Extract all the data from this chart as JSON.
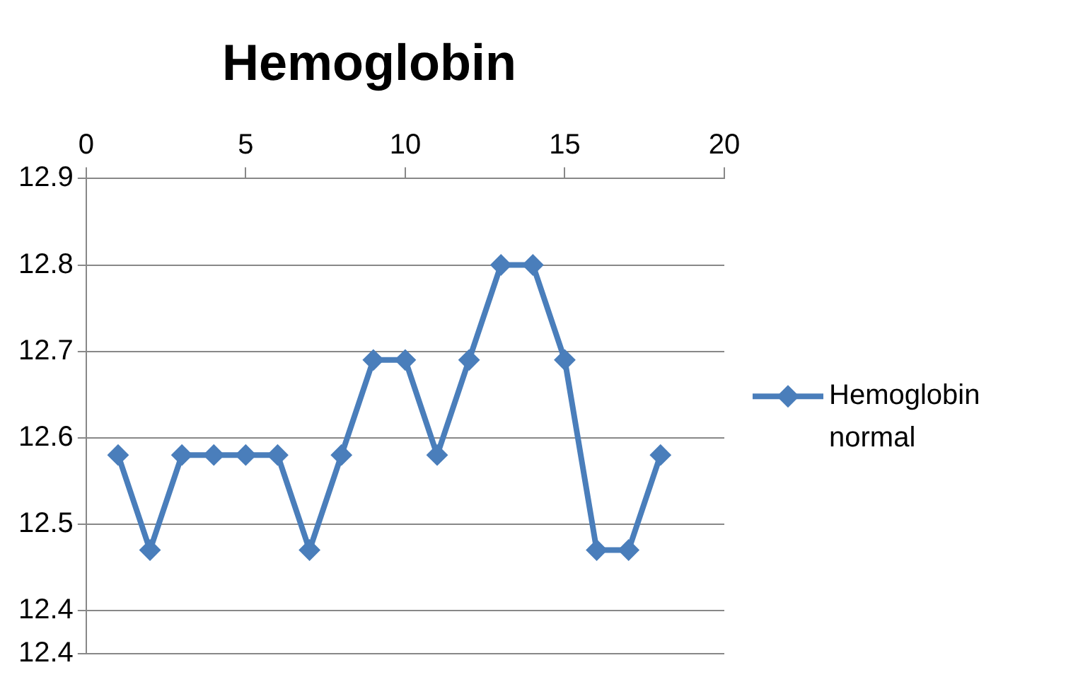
{
  "chart_data": {
    "type": "line",
    "title": "Hemoglobin",
    "x": [
      1,
      2,
      3,
      4,
      5,
      6,
      7,
      8,
      9,
      10,
      11,
      12,
      13,
      14,
      15,
      16,
      17,
      18
    ],
    "series": [
      {
        "name": "Hemoglobin normal",
        "color": "#4a7ebb",
        "values": [
          12.58,
          12.47,
          12.58,
          12.58,
          12.58,
          12.58,
          12.47,
          12.58,
          12.69,
          12.69,
          12.58,
          12.69,
          12.8,
          12.8,
          12.69,
          12.47,
          12.47,
          12.58
        ]
      }
    ],
    "xlim": [
      0,
      20
    ],
    "xticks": [
      0,
      5,
      10,
      15,
      20
    ],
    "ylim": [
      12.35,
      12.9
    ],
    "yticks": [
      {
        "value": 12.35,
        "label": "12.4"
      },
      12.4,
      12.5,
      12.6,
      12.7,
      12.8,
      12.9
    ],
    "grid": "y",
    "legend": "right",
    "marker": "diamond",
    "line_style": "solid"
  }
}
